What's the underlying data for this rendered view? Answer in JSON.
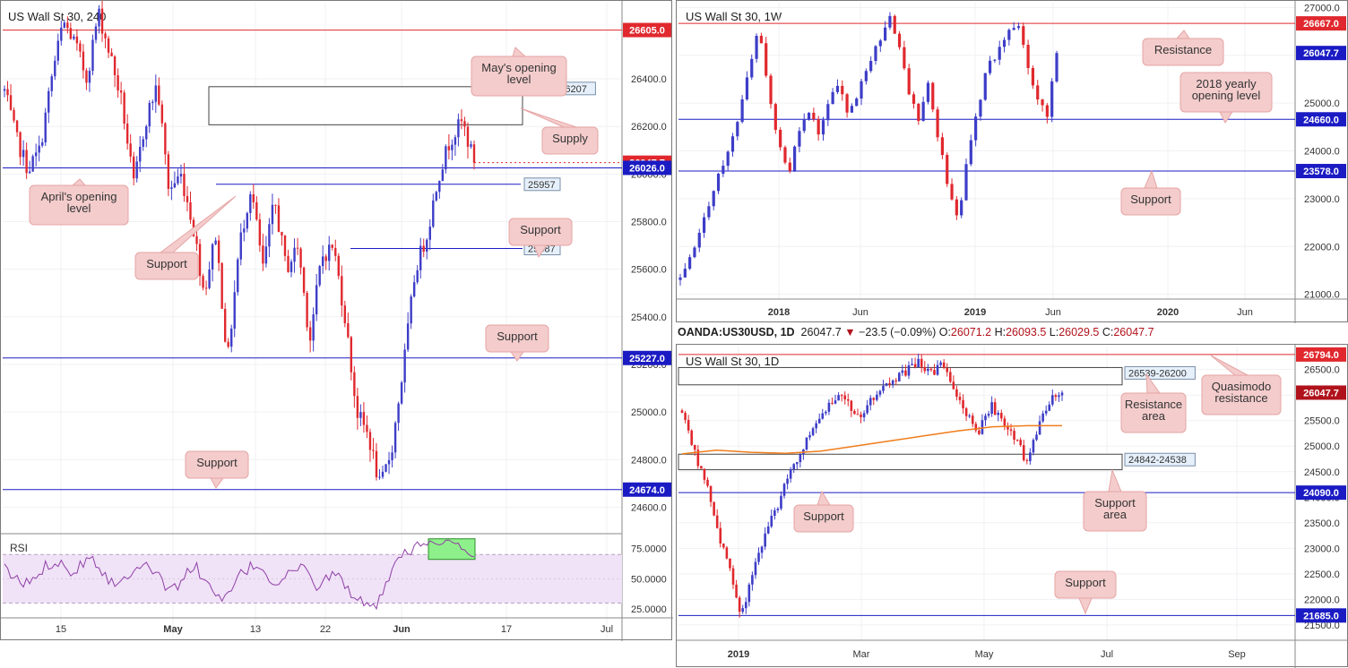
{
  "chart_data": [
    {
      "type": "candlestick",
      "title": "US Wall St 30, 240",
      "x_ticks": [
        "15",
        "May",
        "13",
        "22",
        "Jun",
        "17",
        "Jul"
      ],
      "y_ticks": [
        "24600.0",
        "24800.0",
        "25000.0",
        "25200.0",
        "25400.0",
        "25600.0",
        "25800.0",
        "26000.0",
        "26200.0",
        "26400.0"
      ],
      "ylim": [
        24500,
        26720
      ],
      "price_tags": [
        {
          "value": 26605.0,
          "label": "26605.0",
          "color": "#e0282e"
        },
        {
          "value": 26047.7,
          "label": "26047.7",
          "color": "#e0282e"
        },
        {
          "value": 26026.0,
          "label": "26026.0",
          "color": "#1b1bc4"
        },
        {
          "value": 25227.0,
          "label": "25227.0",
          "color": "#1b1bc4"
        },
        {
          "value": 24674.0,
          "label": "24674.0",
          "color": "#1b1bc4"
        }
      ],
      "level_labels": [
        "26367-26207",
        "25957",
        "25687"
      ],
      "annotations": [
        "May's opening level",
        "Supply",
        "April's opening level",
        "Support",
        "Support",
        "Support",
        "Support"
      ],
      "series_path": [
        26350,
        26150,
        26020,
        26100,
        26400,
        26640,
        26550,
        26400,
        26680,
        26500,
        26300,
        25950,
        26220,
        26380,
        25930,
        26000,
        25800,
        25500,
        25750,
        25210,
        25700,
        25950,
        25600,
        25890,
        25600,
        25700,
        25300,
        25650,
        25700,
        25400,
        25000,
        24900,
        24680,
        24850,
        25200,
        25600,
        25750,
        26000,
        26150,
        26220,
        26047.7
      ],
      "rsi": {
        "label": "RSI",
        "ticks": [
          "75.0000",
          "50.0000",
          "25.0000"
        ],
        "ylim": [
          20,
          85
        ],
        "band": [
          30,
          70
        ],
        "values": [
          58,
          52,
          45,
          48,
          55,
          62,
          66,
          60,
          55,
          64,
          70,
          58,
          50,
          44,
          52,
          60,
          65,
          58,
          48,
          40,
          46,
          55,
          60,
          50,
          38,
          30,
          40,
          52,
          58,
          62,
          55,
          46,
          50,
          56,
          60,
          52,
          44,
          50,
          55,
          46,
          38,
          30,
          24,
          30,
          45,
          62,
          70,
          75,
          78,
          80,
          79,
          81,
          80,
          72,
          68
        ]
      }
    },
    {
      "type": "candlestick",
      "title": "US Wall St 30, 1W",
      "x_ticks": [
        "2018",
        "Jun",
        "2019",
        "Jun",
        "2020",
        "Jun"
      ],
      "y_ticks": [
        "21000.0",
        "22000.0",
        "23000.0",
        "24000.0",
        "25000.0",
        "26000.0",
        "27000.0"
      ],
      "ylim": [
        20900,
        27100
      ],
      "price_tags": [
        {
          "value": 26667.0,
          "label": "26667.0",
          "color": "#e0282e"
        },
        {
          "value": 26047.7,
          "label": "26047.7",
          "color": "#1b1bc4"
        },
        {
          "value": 24660.0,
          "label": "24660.0",
          "color": "#1b1bc4"
        },
        {
          "value": 23578.0,
          "label": "23578.0",
          "color": "#1b1bc4"
        }
      ],
      "annotations": [
        "Resistance",
        "2018 yearly opening level",
        "Support"
      ],
      "series_path": [
        21300,
        21700,
        22300,
        23000,
        23600,
        24000,
        24800,
        25700,
        26600,
        25000,
        24200,
        23600,
        24400,
        24900,
        24300,
        25000,
        25500,
        24700,
        25300,
        25800,
        26300,
        26800,
        26400,
        25300,
        24600,
        25500,
        24300,
        23300,
        22600,
        23800,
        24900,
        25700,
        26100,
        26400,
        26700,
        25800,
        25100,
        24700,
        26047.7
      ]
    },
    {
      "type": "candlestick",
      "title": "US Wall St 30, 1D",
      "header": {
        "symbol": "OANDA:US30USD, 1D",
        "last": "26047.7",
        "change": "−23.5 (−0.09%)",
        "open": "26071.2",
        "high": "26093.5",
        "low": "26029.5",
        "close": "26047.7"
      },
      "indicator": "MA",
      "x_ticks": [
        "2019",
        "Mar",
        "May",
        "Jul",
        "Sep"
      ],
      "y_ticks": [
        "21500.0",
        "22000.0",
        "22500.0",
        "23000.0",
        "23500.0",
        "24000.0",
        "24500.0",
        "25000.0",
        "25500.0",
        "26000.0",
        "26500.0"
      ],
      "ylim": [
        21200,
        26950
      ],
      "price_tags": [
        {
          "value": 26794.0,
          "label": "26794.0",
          "color": "#e0282e"
        },
        {
          "value": 26047.7,
          "label": "26047.7",
          "color": "#b0121b"
        },
        {
          "value": 24090.0,
          "label": "24090.0",
          "color": "#1b1bc4"
        },
        {
          "value": 21685.0,
          "label": "21685.0",
          "color": "#1b1bc4"
        }
      ],
      "level_labels": [
        "26539-26200",
        "24842-24538"
      ],
      "annotations": [
        "Quasimodo resistance",
        "Resistance area",
        "Support",
        "Support area",
        "Support"
      ],
      "series_path": [
        25700,
        24900,
        24300,
        23300,
        22600,
        21700,
        22500,
        23300,
        23800,
        24500,
        24900,
        25300,
        25700,
        26000,
        25800,
        25600,
        25900,
        26150,
        26300,
        26500,
        26650,
        26400,
        26600,
        26100,
        25600,
        25300,
        25800,
        25500,
        25200,
        24700,
        25400,
        25900,
        26047.7
      ],
      "ma_path": [
        24850,
        24920,
        24880,
        24860,
        24900,
        25000,
        25100,
        25200,
        25300,
        25380,
        25400,
        25400
      ]
    }
  ]
}
